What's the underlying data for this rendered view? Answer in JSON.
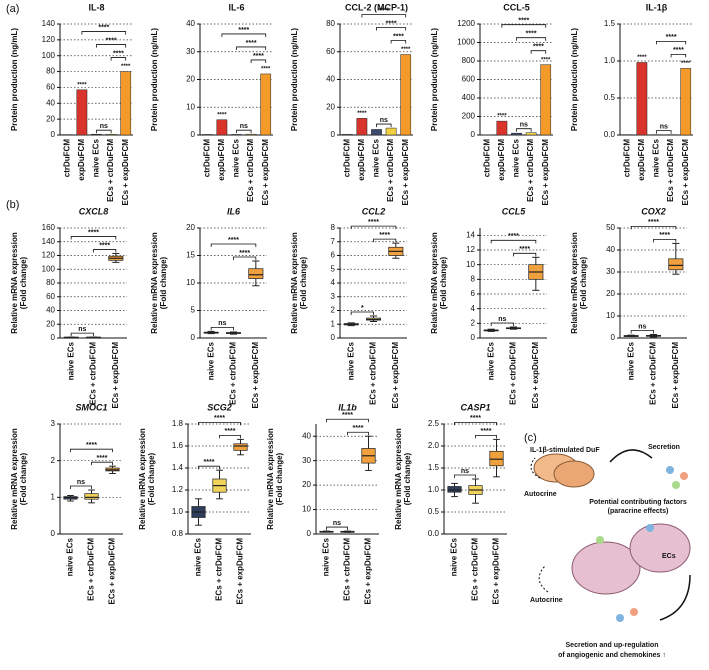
{
  "panel_labels": [
    "(a)",
    "(b)",
    "(c)"
  ],
  "chart_data": [
    {
      "type": "bar",
      "title": "IL-8",
      "ylabel": "Protein production (ng/mL)",
      "categories": [
        "ctrDuFCM",
        "expDuFCM",
        "naive ECs",
        "ECs + ctrDuFCM",
        "ECs + expDuFCM"
      ],
      "values": [
        0.5,
        57,
        1,
        1,
        80
      ],
      "colors": [
        "#7f8fb5",
        "#d9342b",
        "#3c4a6e",
        "#f0d040",
        "#f39a2a"
      ],
      "ylim": [
        0,
        140
      ],
      "yticks": [
        0,
        20,
        40,
        60,
        80,
        100,
        120,
        140
      ],
      "grid": true,
      "significance": [
        {
          "label": "****",
          "groups": [
            "expDuFCM"
          ]
        },
        {
          "label": "****",
          "groups": [
            "ECs + expDuFCM"
          ]
        },
        {
          "label": "ns",
          "groups": [
            "naive ECs",
            "ECs + ctrDuFCM"
          ]
        },
        {
          "label": "****",
          "groups": [
            "ECs + ctrDuFCM",
            "ECs + expDuFCM"
          ]
        },
        {
          "label": "****",
          "groups": [
            "naive ECs",
            "ECs + expDuFCM"
          ]
        },
        {
          "label": "****",
          "groups": [
            "expDuFCM",
            "ECs + expDuFCM"
          ]
        }
      ]
    },
    {
      "type": "bar",
      "title": "IL-6",
      "ylabel": "Protein production (ng/mL)",
      "categories": [
        "ctrDuFCM",
        "expDuFCM",
        "naive ECs",
        "ECs + ctrDuFCM",
        "ECs + expDuFCM"
      ],
      "values": [
        0.2,
        5.5,
        0.2,
        0.3,
        22
      ],
      "colors": [
        "#7f8fb5",
        "#d9342b",
        "#3c4a6e",
        "#f0d040",
        "#f39a2a"
      ],
      "ylim": [
        0,
        40
      ],
      "yticks": [
        0,
        10,
        20,
        30,
        40
      ],
      "grid": true,
      "significance": [
        {
          "label": "****",
          "groups": [
            "expDuFCM"
          ]
        },
        {
          "label": "****",
          "groups": [
            "ECs + expDuFCM"
          ]
        },
        {
          "label": "ns",
          "groups": [
            "naive ECs",
            "ECs + ctrDuFCM"
          ]
        },
        {
          "label": "****",
          "groups": [
            "ECs + ctrDuFCM",
            "ECs + expDuFCM"
          ]
        },
        {
          "label": "****",
          "groups": [
            "naive ECs",
            "ECs + expDuFCM"
          ]
        },
        {
          "label": "****",
          "groups": [
            "expDuFCM",
            "ECs + expDuFCM"
          ]
        }
      ]
    },
    {
      "type": "bar",
      "title": "CCL-2 (MCP-1)",
      "ylabel": "Protein production (ng/mL)",
      "categories": [
        "ctrDuFCM",
        "expDuFCM",
        "naive ECs",
        "ECs + ctrDuFCM",
        "ECs + expDuFCM"
      ],
      "values": [
        0.5,
        12,
        4,
        5,
        58
      ],
      "colors": [
        "#7f8fb5",
        "#d9342b",
        "#3c4a6e",
        "#f0d040",
        "#f39a2a"
      ],
      "ylim": [
        0,
        80
      ],
      "yticks": [
        0,
        20,
        40,
        60,
        80
      ],
      "grid": true,
      "significance": [
        {
          "label": "****",
          "groups": [
            "expDuFCM"
          ]
        },
        {
          "label": "****",
          "groups": [
            "ECs + expDuFCM"
          ]
        },
        {
          "label": "ns",
          "groups": [
            "naive ECs",
            "ECs + ctrDuFCM"
          ]
        },
        {
          "label": "****",
          "groups": [
            "ECs + ctrDuFCM",
            "ECs + expDuFCM"
          ]
        },
        {
          "label": "****",
          "groups": [
            "naive ECs",
            "ECs + expDuFCM"
          ]
        },
        {
          "label": "****",
          "groups": [
            "expDuFCM",
            "ECs + expDuFCM"
          ]
        }
      ]
    },
    {
      "type": "bar",
      "title": "CCL-5",
      "ylabel": "Protein production (ng/mL)",
      "categories": [
        "ctrDuFCM",
        "expDuFCM",
        "naive ECs",
        "ECs + ctrDuFCM",
        "ECs + expDuFCM"
      ],
      "values": [
        2,
        150,
        20,
        25,
        760
      ],
      "colors": [
        "#7f8fb5",
        "#d9342b",
        "#3c4a6e",
        "#f0d040",
        "#f39a2a"
      ],
      "ylim": [
        0,
        1200
      ],
      "yticks": [
        0,
        200,
        400,
        600,
        800,
        1000,
        1200
      ],
      "grid": true,
      "significance": [
        {
          "label": "****",
          "groups": [
            "expDuFCM"
          ]
        },
        {
          "label": "****",
          "groups": [
            "ECs + expDuFCM"
          ]
        },
        {
          "label": "ns",
          "groups": [
            "naive ECs",
            "ECs + ctrDuFCM"
          ]
        },
        {
          "label": "****",
          "groups": [
            "ECs + ctrDuFCM",
            "ECs + expDuFCM"
          ]
        },
        {
          "label": "****",
          "groups": [
            "naive ECs",
            "ECs + expDuFCM"
          ]
        },
        {
          "label": "****",
          "groups": [
            "expDuFCM",
            "ECs + expDuFCM"
          ]
        }
      ]
    },
    {
      "type": "bar",
      "title": "IL-1β",
      "ylabel": "Protein production (ng/mL)",
      "categories": [
        "ctrDuFCM",
        "expDuFCM",
        "naive ECs",
        "ECs + ctrDuFCM",
        "ECs + expDuFCM"
      ],
      "values": [
        0.005,
        0.98,
        0.005,
        0.005,
        0.9
      ],
      "colors": [
        "#7f8fb5",
        "#d9342b",
        "#3c4a6e",
        "#f0d040",
        "#f39a2a"
      ],
      "ylim": [
        0,
        1.5
      ],
      "yticks": [
        {
          "value": 0,
          "label": "0.0"
        },
        0.5,
        {
          "value": 1,
          "label": "1.0"
        },
        1.5
      ],
      "grid": true,
      "significance": [
        {
          "label": "****",
          "groups": [
            "expDuFCM"
          ]
        },
        {
          "label": "****",
          "groups": [
            "ECs + expDuFCM"
          ]
        },
        {
          "label": "ns",
          "groups": [
            "naive ECs",
            "ECs + ctrDuFCM"
          ]
        },
        {
          "label": "****",
          "groups": [
            "ECs + ctrDuFCM",
            "ECs + expDuFCM"
          ]
        },
        {
          "label": "****",
          "groups": [
            "naive ECs",
            "ECs + expDuFCM"
          ]
        }
      ]
    },
    {
      "type": "box",
      "title": "CXCL8",
      "ylabel": [
        "Relative mRNA expression",
        "(Fold change)"
      ],
      "categories": [
        "naive ECs",
        "ECs + ctrDuFCM",
        "ECs + expDuFCM"
      ],
      "colors": [
        "#2f3e5c",
        "#f2d35a",
        "#f0a03c"
      ],
      "boxes": [
        {
          "min": 0.8,
          "q1": 0.9,
          "median": 1,
          "q3": 1.1,
          "max": 1.2
        },
        {
          "min": 0.7,
          "q1": 0.9,
          "median": 1,
          "q3": 1.1,
          "max": 1.3
        },
        {
          "min": 110,
          "q1": 113,
          "median": 116,
          "q3": 119,
          "max": 123
        }
      ],
      "ylim": [
        0,
        160
      ],
      "yticks": [
        0,
        20,
        40,
        60,
        80,
        100,
        120,
        140,
        160
      ],
      "grid": true,
      "significance": [
        {
          "label": "ns",
          "groups": [
            "naive ECs",
            "ECs + ctrDuFCM"
          ]
        },
        {
          "label": "****",
          "groups": [
            "ECs + ctrDuFCM",
            "ECs + expDuFCM"
          ]
        },
        {
          "label": "****",
          "groups": [
            "naive ECs",
            "ECs + expDuFCM"
          ]
        }
      ]
    },
    {
      "type": "box",
      "title": "IL6",
      "ylabel": [
        "Relative mRNA expression",
        "(Fold change)"
      ],
      "categories": [
        "naive ECs",
        "ECs + ctrDuFCM",
        "ECs + expDuFCM"
      ],
      "colors": [
        "#2f3e5c",
        "#f2d35a",
        "#f0a03c"
      ],
      "boxes": [
        {
          "min": 0.8,
          "q1": 0.95,
          "median": 1,
          "q3": 1.05,
          "max": 1.2
        },
        {
          "min": 0.7,
          "q1": 0.85,
          "median": 0.9,
          "q3": 1,
          "max": 1.1
        },
        {
          "min": 9.5,
          "q1": 10.8,
          "median": 11.5,
          "q3": 12.6,
          "max": 14
        }
      ],
      "ylim": [
        0,
        20
      ],
      "yticks": [
        0,
        5,
        10,
        15,
        20
      ],
      "grid": true,
      "significance": [
        {
          "label": "ns",
          "groups": [
            "naive ECs",
            "ECs + ctrDuFCM"
          ]
        },
        {
          "label": "****",
          "groups": [
            "ECs + ctrDuFCM",
            "ECs + expDuFCM"
          ]
        },
        {
          "label": "****",
          "groups": [
            "naive ECs",
            "ECs + expDuFCM"
          ]
        }
      ]
    },
    {
      "type": "box",
      "title": "CCL2",
      "ylabel": [
        "Relative mRNA expression",
        "(Fold change)"
      ],
      "categories": [
        "naive ECs",
        "ECs + ctrDuFCM",
        "ECs + expDuFCM"
      ],
      "colors": [
        "#2f3e5c",
        "#f2d35a",
        "#f0a03c"
      ],
      "boxes": [
        {
          "min": 0.9,
          "q1": 0.95,
          "median": 1,
          "q3": 1.05,
          "max": 1.1
        },
        {
          "min": 1.2,
          "q1": 1.3,
          "median": 1.35,
          "q3": 1.45,
          "max": 1.6
        },
        {
          "min": 5.8,
          "q1": 6,
          "median": 6.3,
          "q3": 6.6,
          "max": 6.9
        }
      ],
      "ylim": [
        0,
        8
      ],
      "yticks": [
        0,
        1,
        2,
        3,
        4,
        5,
        6,
        7,
        8
      ],
      "grid": true,
      "significance": [
        {
          "label": "*",
          "groups": [
            "naive ECs",
            "ECs + ctrDuFCM"
          ]
        },
        {
          "label": "****",
          "groups": [
            "ECs + ctrDuFCM",
            "ECs + expDuFCM"
          ]
        },
        {
          "label": "****",
          "groups": [
            "naive ECs",
            "ECs + expDuFCM"
          ]
        }
      ]
    },
    {
      "type": "box",
      "title": "CCL5",
      "ylabel": [
        "Relative mRNA expression",
        "(Fold change)"
      ],
      "categories": [
        "naive ECs",
        "ECs + ctrDuFCM",
        "ECs + expDuFCM"
      ],
      "colors": [
        "#2f3e5c",
        "#f2d35a",
        "#f0a03c"
      ],
      "boxes": [
        {
          "min": 0.9,
          "q1": 1,
          "median": 1.05,
          "q3": 1.1,
          "max": 1.2
        },
        {
          "min": 1.2,
          "q1": 1.3,
          "median": 1.35,
          "q3": 1.4,
          "max": 1.5
        },
        {
          "min": 6.5,
          "q1": 8,
          "median": 9,
          "q3": 10,
          "max": 11
        }
      ],
      "ylim": [
        0,
        15
      ],
      "yticks": [
        0,
        2,
        4,
        6,
        8,
        10,
        12,
        14
      ],
      "grid": true,
      "significance": [
        {
          "label": "ns",
          "groups": [
            "naive ECs",
            "ECs + ctrDuFCM"
          ]
        },
        {
          "label": "****",
          "groups": [
            "ECs + ctrDuFCM",
            "ECs + expDuFCM"
          ]
        },
        {
          "label": "****",
          "groups": [
            "naive ECs",
            "ECs + expDuFCM"
          ]
        }
      ]
    },
    {
      "type": "box",
      "title": "COX2",
      "ylabel": [
        "Relative mRNA expression",
        "(Fold change)"
      ],
      "categories": [
        "naive ECs",
        "ECs + ctrDuFCM",
        "ECs + expDuFCM"
      ],
      "colors": [
        "#2f3e5c",
        "#f2d35a",
        "#f0a03c"
      ],
      "boxes": [
        {
          "min": 0.7,
          "q1": 0.9,
          "median": 1,
          "q3": 1.1,
          "max": 1.3
        },
        {
          "min": 0.5,
          "q1": 0.8,
          "median": 1,
          "q3": 1.2,
          "max": 1.6
        },
        {
          "min": 29,
          "q1": 31,
          "median": 33,
          "q3": 36,
          "max": 43
        }
      ],
      "ylim": [
        0,
        50
      ],
      "yticks": [
        0,
        10,
        20,
        30,
        40,
        50
      ],
      "grid": true,
      "significance": [
        {
          "label": "ns",
          "groups": [
            "naive ECs",
            "ECs + ctrDuFCM"
          ]
        },
        {
          "label": "****",
          "groups": [
            "ECs + ctrDuFCM",
            "ECs + expDuFCM"
          ]
        },
        {
          "label": "****",
          "groups": [
            "naive ECs",
            "ECs + expDuFCM"
          ]
        }
      ]
    },
    {
      "type": "box",
      "title": "SMOC1",
      "ylabel": [
        "Relative mRNA expression",
        "(Fold change)"
      ],
      "categories": [
        "naive ECs",
        "ECs + ctrDuFCM",
        "ECs + expDuFCM"
      ],
      "colors": [
        "#2f3e5c",
        "#f2d35a",
        "#f0a03c"
      ],
      "boxes": [
        {
          "min": 0.9,
          "q1": 0.95,
          "median": 1,
          "q3": 1.02,
          "max": 1.05
        },
        {
          "min": 0.85,
          "q1": 0.95,
          "median": 1,
          "q3": 1.1,
          "max": 1.2
        },
        {
          "min": 1.65,
          "q1": 1.72,
          "median": 1.75,
          "q3": 1.8,
          "max": 1.85
        }
      ],
      "ylim": [
        0,
        3
      ],
      "yticks": [
        0,
        1,
        2,
        3
      ],
      "grid": true,
      "significance": [
        {
          "label": "ns",
          "groups": [
            "naive ECs",
            "ECs + ctrDuFCM"
          ]
        },
        {
          "label": "****",
          "groups": [
            "ECs + ctrDuFCM",
            "ECs + expDuFCM"
          ]
        },
        {
          "label": "****",
          "groups": [
            "naive ECs",
            "ECs + expDuFCM"
          ]
        }
      ]
    },
    {
      "type": "box",
      "title": "SCG2",
      "ylabel": [
        "Relative mRNA expression",
        "(Fold change)"
      ],
      "categories": [
        "naive ECs",
        "ECs + ctrDuFCM",
        "ECs + expDuFCM"
      ],
      "colors": [
        "#2f3e5c",
        "#f2d35a",
        "#f0a03c"
      ],
      "boxes": [
        {
          "min": 0.88,
          "q1": 0.95,
          "median": 1,
          "q3": 1.05,
          "max": 1.12
        },
        {
          "min": 1.12,
          "q1": 1.18,
          "median": 1.24,
          "q3": 1.3,
          "max": 1.38
        },
        {
          "min": 1.52,
          "q1": 1.56,
          "median": 1.6,
          "q3": 1.62,
          "max": 1.66
        }
      ],
      "ylim": [
        0.8,
        1.8
      ],
      "yticks": [
        0.8,
        {
          "value": 1,
          "label": "1.0"
        },
        1.2,
        1.4,
        1.6,
        1.8
      ],
      "grid": true,
      "significance": [
        {
          "label": "****",
          "groups": [
            "naive ECs",
            "ECs + ctrDuFCM"
          ]
        },
        {
          "label": "****",
          "groups": [
            "ECs + ctrDuFCM",
            "ECs + expDuFCM"
          ]
        },
        {
          "label": "****",
          "groups": [
            "naive ECs",
            "ECs + expDuFCM"
          ]
        }
      ]
    },
    {
      "type": "box",
      "title": "IL1b",
      "ylabel": [
        "Relative mRNA expression",
        "(Fold change)"
      ],
      "categories": [
        "naive ECs",
        "ECs + ctrDuFCM",
        "ECs + expDuFCM"
      ],
      "colors": [
        "#2f3e5c",
        "#f2d35a",
        "#f0a03c"
      ],
      "boxes": [
        {
          "min": 0.8,
          "q1": 0.9,
          "median": 1,
          "q3": 1.1,
          "max": 1.2
        },
        {
          "min": 0.7,
          "q1": 0.9,
          "median": 1,
          "q3": 1.1,
          "max": 1.2
        },
        {
          "min": 26,
          "q1": 29,
          "median": 32,
          "q3": 35,
          "max": 40
        }
      ],
      "ylim": [
        0,
        45
      ],
      "yticks": [
        0,
        10,
        20,
        30,
        40
      ],
      "grid": true,
      "significance": [
        {
          "label": "ns",
          "groups": [
            "naive ECs",
            "ECs + ctrDuFCM"
          ]
        },
        {
          "label": "****",
          "groups": [
            "ECs + ctrDuFCM",
            "ECs + expDuFCM"
          ]
        },
        {
          "label": "****",
          "groups": [
            "naive ECs",
            "ECs + expDuFCM"
          ]
        }
      ]
    },
    {
      "type": "box",
      "title": "CASP1",
      "ylabel": [
        "Relative mRNA expression",
        "(Fold change)"
      ],
      "categories": [
        "naive ECs",
        "ECs + ctrDuFCM",
        "ECs + expDuFCM"
      ],
      "colors": [
        "#2f3e5c",
        "#f2d35a",
        "#f0a03c"
      ],
      "boxes": [
        {
          "min": 0.85,
          "q1": 0.95,
          "median": 1,
          "q3": 1.08,
          "max": 1.15
        },
        {
          "min": 0.7,
          "q1": 0.9,
          "median": 1,
          "q3": 1.1,
          "max": 1.25
        },
        {
          "min": 1.3,
          "q1": 1.55,
          "median": 1.7,
          "q3": 1.88,
          "max": 2.15
        }
      ],
      "ylim": [
        0,
        2.5
      ],
      "yticks": [
        {
          "value": 0,
          "label": "0.0"
        },
        0.5,
        {
          "value": 1,
          "label": "1.0"
        },
        1.5,
        {
          "value": 2,
          "label": "2.0"
        },
        2.5
      ],
      "grid": true,
      "significance": [
        {
          "label": "ns",
          "groups": [
            "naive ECs",
            "ECs + ctrDuFCM"
          ]
        },
        {
          "label": "****",
          "groups": [
            "ECs + ctrDuFCM",
            "ECs + expDuFCM"
          ]
        },
        {
          "label": "****",
          "groups": [
            "naive ECs",
            "ECs + expDuFCM"
          ]
        }
      ]
    }
  ],
  "diagram": {
    "duf_label": "IL-1β-stimulated DuF",
    "secretion": "Secretion",
    "autocrine_top": "Autocrine",
    "paracrine": [
      "Potential contributing factors",
      "(paracrine effects)"
    ],
    "ecs": "ECs",
    "autocrine_bottom": "Autocrine",
    "outcome": [
      "Secretion and up-regulation",
      "of angiogenic and chemokines ↑"
    ]
  }
}
